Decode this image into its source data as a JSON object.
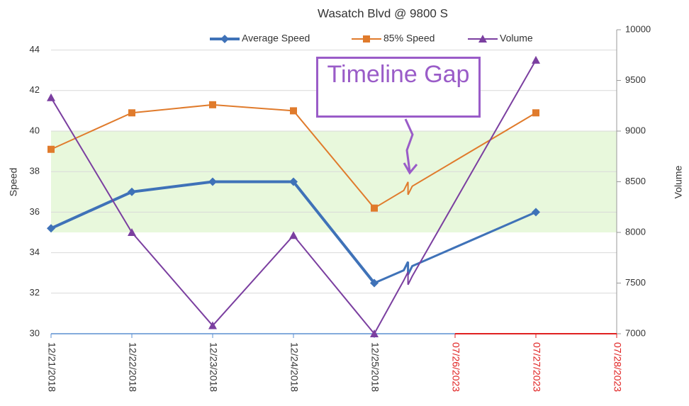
{
  "chart_data": {
    "type": "line",
    "title": "Wasatch Blvd @ 9800 S",
    "y_label": "Speed",
    "y2_label": "Volume",
    "annotation": "Timeline Gap",
    "categories": [
      "12/21/2018",
      "12/22/2018",
      "12/23/2018",
      "12/24/2018",
      "12/25/2018",
      "07/26/2023",
      "07/27/2023",
      "07/28/2023"
    ],
    "category_colors": [
      "#333333",
      "#333333",
      "#333333",
      "#333333",
      "#333333",
      "#e02020",
      "#e02020",
      "#e02020"
    ],
    "series": [
      {
        "name": "Average Speed",
        "color": "#3f72b8",
        "marker": "diamond",
        "values": [
          35.2,
          37.0,
          37.5,
          37.5,
          32.5,
          null,
          36.0,
          null
        ]
      },
      {
        "name": "85% Speed",
        "color": "#e07b2c",
        "marker": "square",
        "values": [
          39.1,
          40.9,
          41.3,
          41.0,
          36.2,
          null,
          40.9,
          null
        ]
      },
      {
        "name": "Volume",
        "color": "#7b3fa0",
        "marker": "triangle",
        "axis": "y2",
        "values": [
          9330,
          8000,
          7080,
          7970,
          7000,
          null,
          9700,
          null
        ]
      }
    ],
    "ylim": [
      30,
      45
    ],
    "yticks": [
      30,
      32,
      34,
      36,
      38,
      40,
      42,
      44
    ],
    "y2lim": [
      7000,
      10000
    ],
    "y2ticks": [
      7000,
      7500,
      8000,
      8500,
      9000,
      9500,
      10000
    ],
    "band": [
      35,
      40
    ],
    "band_color": "#e8f8dc",
    "grid": true,
    "legend": "top"
  }
}
